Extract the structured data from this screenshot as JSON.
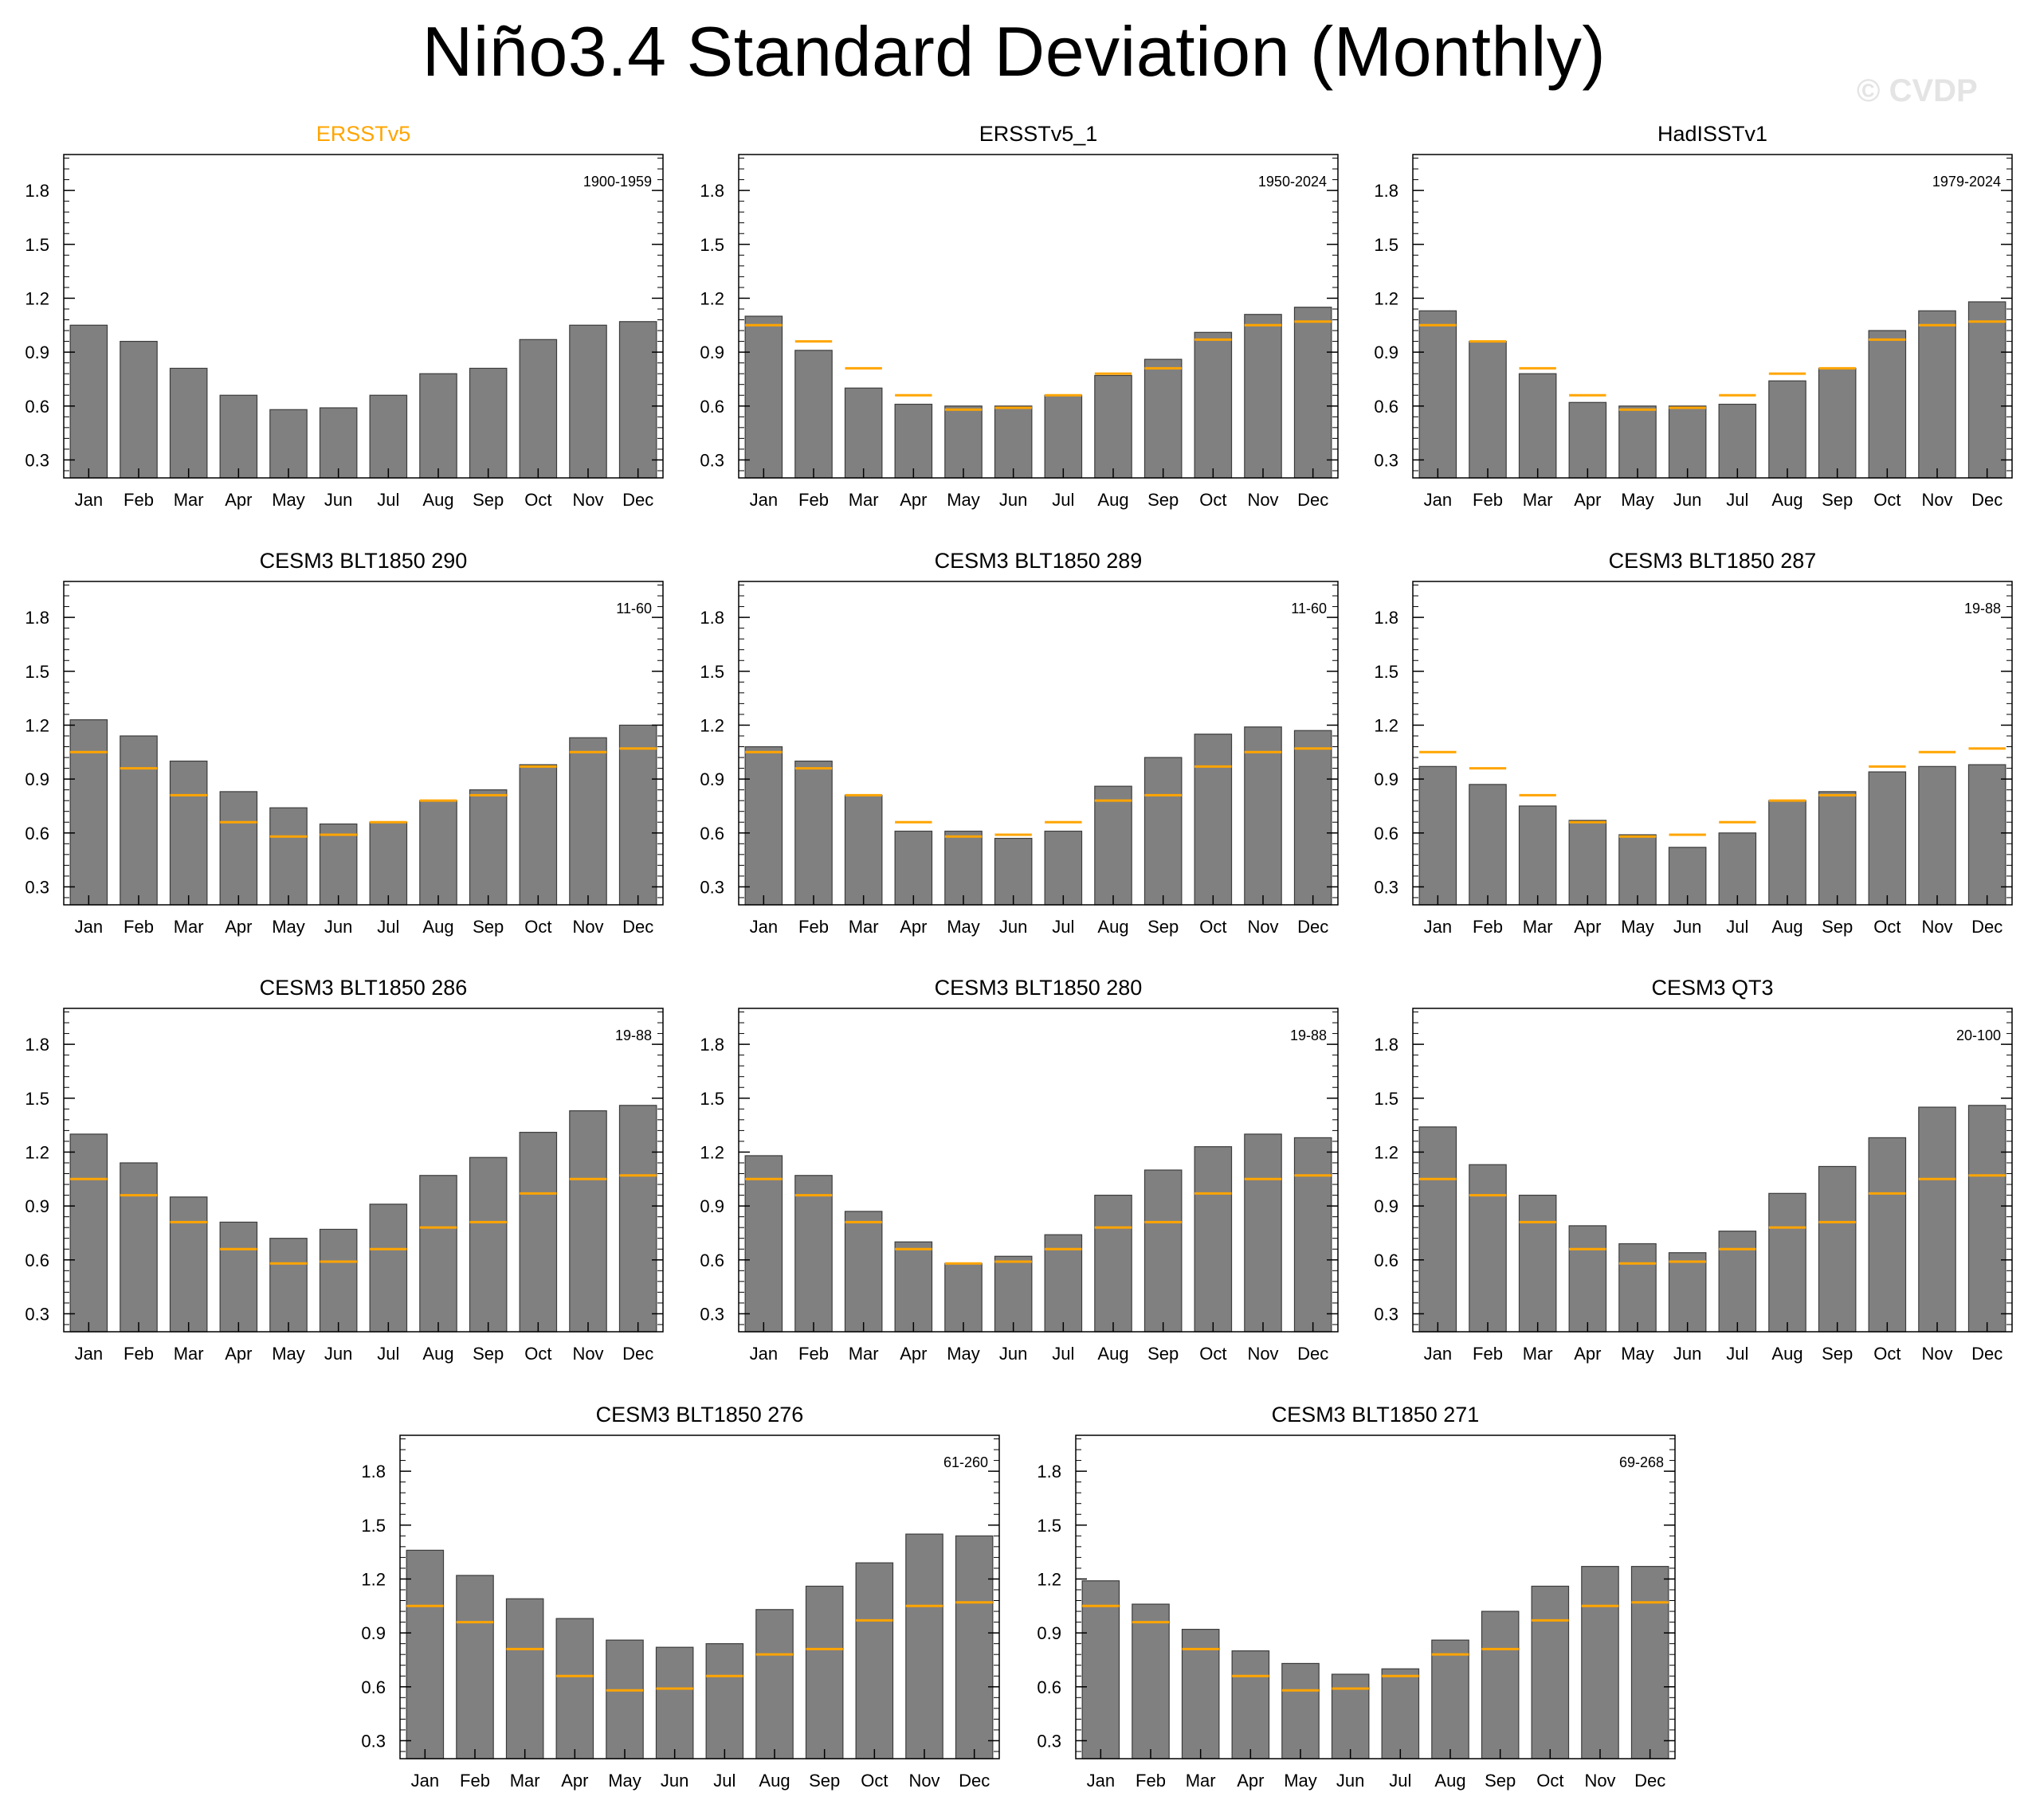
{
  "title": "Niño3.4 Standard Deviation (Monthly)",
  "watermark": "© CVDP",
  "colors": {
    "bar": "#808080",
    "bar_edge": "#3c3c3c",
    "reference": "#ffa500",
    "highlight_title": "#ffa500"
  },
  "chart_data": {
    "type": "bar",
    "categories": [
      "Jan",
      "Feb",
      "Mar",
      "Apr",
      "May",
      "Jun",
      "Jul",
      "Aug",
      "Sep",
      "Oct",
      "Nov",
      "Dec"
    ],
    "ylim": [
      0.2,
      2.0
    ],
    "yticks": [
      0.3,
      0.6,
      0.9,
      1.2,
      1.5,
      1.8
    ],
    "ytick_labels": [
      "0.3",
      "0.6",
      "0.9",
      "1.2",
      "1.5",
      "1.8"
    ],
    "reference_name": "ERSSTv5",
    "reference_values": [
      1.05,
      0.96,
      0.81,
      0.66,
      0.58,
      0.59,
      0.66,
      0.78,
      0.81,
      0.97,
      1.05,
      1.07
    ],
    "panels": [
      {
        "title": "ERSSTv5",
        "highlight": true,
        "show_reference": false,
        "period": "1900-1959",
        "values": [
          1.05,
          0.96,
          0.81,
          0.66,
          0.58,
          0.59,
          0.66,
          0.78,
          0.81,
          0.97,
          1.05,
          1.07
        ]
      },
      {
        "title": "ERSSTv5_1",
        "highlight": false,
        "show_reference": true,
        "period": "1950-2024",
        "values": [
          1.1,
          0.91,
          0.7,
          0.61,
          0.6,
          0.6,
          0.66,
          0.77,
          0.86,
          1.01,
          1.11,
          1.15
        ]
      },
      {
        "title": "HadISSTv1",
        "highlight": false,
        "show_reference": true,
        "period": "1979-2024",
        "values": [
          1.13,
          0.96,
          0.78,
          0.62,
          0.6,
          0.6,
          0.61,
          0.74,
          0.81,
          1.02,
          1.13,
          1.18
        ]
      },
      {
        "title": "CESM3 BLT1850 290",
        "highlight": false,
        "show_reference": true,
        "period": "11-60",
        "values": [
          1.23,
          1.14,
          1.0,
          0.83,
          0.74,
          0.65,
          0.66,
          0.78,
          0.84,
          0.98,
          1.13,
          1.2
        ]
      },
      {
        "title": "CESM3 BLT1850 289",
        "highlight": false,
        "show_reference": true,
        "period": "11-60",
        "values": [
          1.08,
          1.0,
          0.81,
          0.61,
          0.61,
          0.57,
          0.61,
          0.86,
          1.02,
          1.15,
          1.19,
          1.17
        ]
      },
      {
        "title": "CESM3 BLT1850 287",
        "highlight": false,
        "show_reference": true,
        "period": "19-88",
        "values": [
          0.97,
          0.87,
          0.75,
          0.67,
          0.59,
          0.52,
          0.6,
          0.78,
          0.83,
          0.94,
          0.97,
          0.98
        ]
      },
      {
        "title": "CESM3 BLT1850 286",
        "highlight": false,
        "show_reference": true,
        "period": "19-88",
        "values": [
          1.3,
          1.14,
          0.95,
          0.81,
          0.72,
          0.77,
          0.91,
          1.07,
          1.17,
          1.31,
          1.43,
          1.46
        ]
      },
      {
        "title": "CESM3 BLT1850 280",
        "highlight": false,
        "show_reference": true,
        "period": "19-88",
        "values": [
          1.18,
          1.07,
          0.87,
          0.7,
          0.58,
          0.62,
          0.74,
          0.96,
          1.1,
          1.23,
          1.3,
          1.28
        ]
      },
      {
        "title": "CESM3 QT3",
        "highlight": false,
        "show_reference": true,
        "period": "20-100",
        "values": [
          1.34,
          1.13,
          0.96,
          0.79,
          0.69,
          0.64,
          0.76,
          0.97,
          1.12,
          1.28,
          1.45,
          1.46
        ]
      },
      {
        "title": "CESM3 BLT1850 276",
        "highlight": false,
        "show_reference": true,
        "period": "61-260",
        "values": [
          1.36,
          1.22,
          1.09,
          0.98,
          0.86,
          0.82,
          0.84,
          1.03,
          1.16,
          1.29,
          1.45,
          1.44
        ]
      },
      {
        "title": "CESM3 BLT1850 271",
        "highlight": false,
        "show_reference": true,
        "period": "69-268",
        "values": [
          1.19,
          1.06,
          0.92,
          0.8,
          0.73,
          0.67,
          0.7,
          0.86,
          1.02,
          1.16,
          1.27,
          1.27
        ]
      }
    ]
  }
}
